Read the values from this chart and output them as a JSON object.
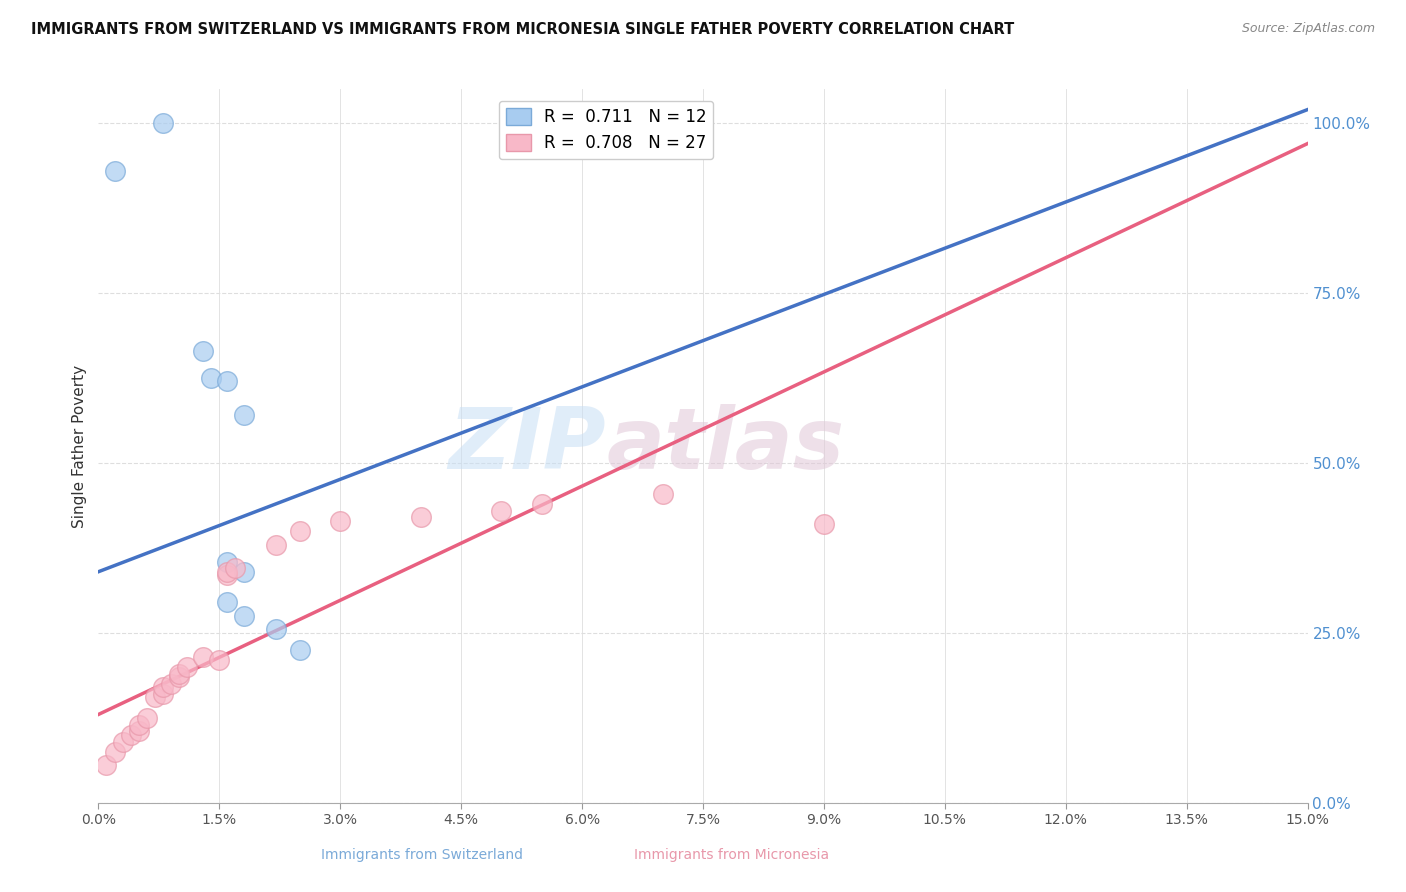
{
  "title": "IMMIGRANTS FROM SWITZERLAND VS IMMIGRANTS FROM MICRONESIA SINGLE FATHER POVERTY CORRELATION CHART",
  "source": "Source: ZipAtlas.com",
  "ylabel": "Single Father Poverty",
  "legend_blue_r": "0.711",
  "legend_blue_n": "12",
  "legend_pink_r": "0.708",
  "legend_pink_n": "27",
  "blue_color": "#A8CCF0",
  "pink_color": "#F8B8C8",
  "blue_line_color": "#4472C4",
  "pink_line_color": "#E86080",
  "watermark_zip": "ZIP",
  "watermark_atlas": "atlas",
  "switzerland_points": [
    [
      0.002,
      0.93
    ],
    [
      0.008,
      1.0
    ],
    [
      0.013,
      0.665
    ],
    [
      0.014,
      0.625
    ],
    [
      0.016,
      0.62
    ],
    [
      0.018,
      0.57
    ],
    [
      0.016,
      0.355
    ],
    [
      0.018,
      0.34
    ],
    [
      0.016,
      0.295
    ],
    [
      0.018,
      0.275
    ],
    [
      0.022,
      0.255
    ],
    [
      0.025,
      0.225
    ]
  ],
  "micronesia_points": [
    [
      0.001,
      0.055
    ],
    [
      0.002,
      0.075
    ],
    [
      0.003,
      0.09
    ],
    [
      0.004,
      0.1
    ],
    [
      0.005,
      0.105
    ],
    [
      0.005,
      0.115
    ],
    [
      0.006,
      0.125
    ],
    [
      0.007,
      0.155
    ],
    [
      0.008,
      0.16
    ],
    [
      0.008,
      0.17
    ],
    [
      0.009,
      0.175
    ],
    [
      0.01,
      0.185
    ],
    [
      0.01,
      0.19
    ],
    [
      0.011,
      0.2
    ],
    [
      0.013,
      0.215
    ],
    [
      0.015,
      0.21
    ],
    [
      0.016,
      0.335
    ],
    [
      0.016,
      0.34
    ],
    [
      0.017,
      0.345
    ],
    [
      0.022,
      0.38
    ],
    [
      0.025,
      0.4
    ],
    [
      0.03,
      0.415
    ],
    [
      0.04,
      0.42
    ],
    [
      0.05,
      0.43
    ],
    [
      0.055,
      0.44
    ],
    [
      0.07,
      0.455
    ],
    [
      0.09,
      0.41
    ]
  ],
  "xlim": [
    0.0,
    0.15
  ],
  "ylim": [
    0.0,
    1.05
  ],
  "xtick_values": [
    0.0,
    0.015,
    0.03,
    0.045,
    0.06,
    0.075,
    0.09,
    0.105,
    0.12,
    0.135,
    0.15
  ],
  "xticklabels": [
    "0.0%",
    "1.5%",
    "3.0%",
    "4.5%",
    "6.0%",
    "7.5%",
    "9.0%",
    "10.5%",
    "12.0%",
    "13.5%",
    "15.0%"
  ],
  "ytick_right_values": [
    0.0,
    0.25,
    0.5,
    0.75,
    1.0
  ],
  "ytick_right_labels": [
    "0.0%",
    "25.0%",
    "50.0%",
    "75.0%",
    "100.0%"
  ],
  "grid_color": "#DEDEDE",
  "blue_trendline": [
    0.0,
    0.34,
    0.15,
    1.02
  ],
  "pink_trendline": [
    0.0,
    0.13,
    0.15,
    0.97
  ]
}
